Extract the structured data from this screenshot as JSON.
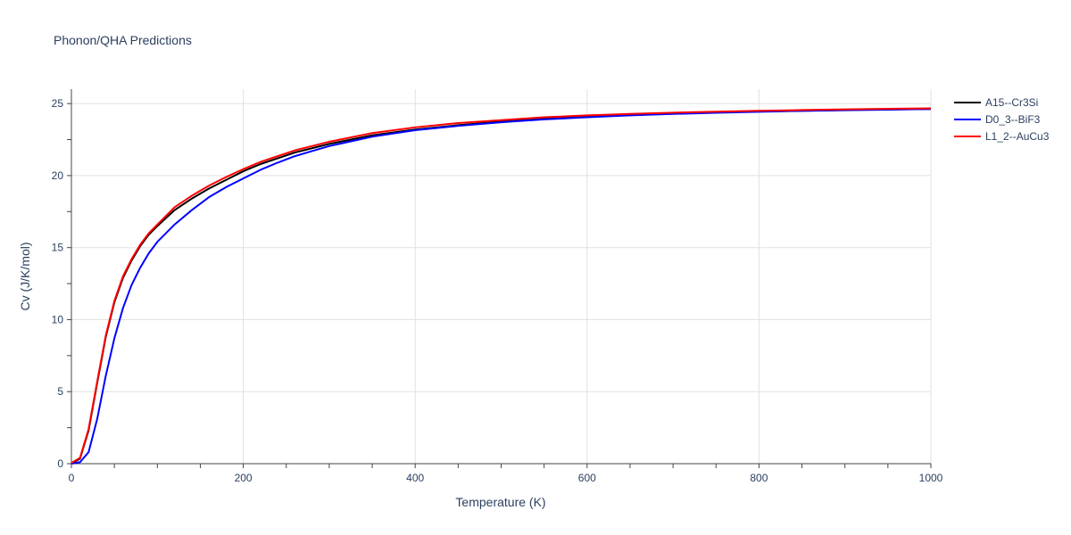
{
  "chart_data": {
    "type": "line",
    "title": "Phonon/QHA Predictions",
    "xlabel": "Temperature (K)",
    "ylabel": "Cv (J/K/mol)",
    "xlim": [
      0,
      1000
    ],
    "ylim": [
      0,
      26
    ],
    "xticks": [
      0,
      200,
      400,
      600,
      800,
      1000
    ],
    "yticks": [
      0,
      5,
      10,
      15,
      20,
      25
    ],
    "grid": true,
    "legend_position": "top-right",
    "series": [
      {
        "name": "A15--Cr3Si",
        "color": "#000000",
        "x": [
          0,
          10,
          20,
          30,
          40,
          50,
          60,
          70,
          80,
          90,
          100,
          120,
          140,
          160,
          180,
          200,
          220,
          240,
          260,
          280,
          300,
          350,
          400,
          450,
          500,
          550,
          600,
          650,
          700,
          750,
          800,
          850,
          900,
          950,
          1000
        ],
        "y": [
          0,
          0.35,
          2.3,
          5.6,
          8.8,
          11.2,
          12.9,
          14.1,
          15.1,
          15.9,
          16.5,
          17.6,
          18.4,
          19.1,
          19.7,
          20.3,
          20.8,
          21.2,
          21.6,
          21.9,
          22.2,
          22.8,
          23.2,
          23.5,
          23.75,
          23.95,
          24.1,
          24.2,
          24.3,
          24.38,
          24.45,
          24.5,
          24.55,
          24.6,
          24.62
        ]
      },
      {
        "name": "D0_3--BiF3",
        "color": "#0000ff",
        "x": [
          0,
          10,
          20,
          30,
          40,
          50,
          60,
          70,
          80,
          90,
          100,
          120,
          140,
          160,
          180,
          200,
          220,
          240,
          260,
          280,
          300,
          350,
          400,
          450,
          500,
          550,
          600,
          650,
          700,
          750,
          800,
          850,
          900,
          950,
          1000
        ],
        "y": [
          0,
          0.1,
          0.8,
          3.1,
          6.1,
          8.7,
          10.8,
          12.4,
          13.6,
          14.6,
          15.4,
          16.6,
          17.6,
          18.5,
          19.2,
          19.8,
          20.4,
          20.9,
          21.35,
          21.7,
          22.05,
          22.7,
          23.15,
          23.45,
          23.7,
          23.9,
          24.05,
          24.18,
          24.28,
          24.36,
          24.43,
          24.49,
          24.54,
          24.58,
          24.62
        ]
      },
      {
        "name": "L1_2--AuCu3",
        "color": "#ff0000",
        "x": [
          0,
          10,
          20,
          30,
          40,
          50,
          60,
          70,
          80,
          90,
          100,
          120,
          140,
          160,
          180,
          200,
          220,
          240,
          260,
          280,
          300,
          350,
          400,
          450,
          500,
          550,
          600,
          650,
          700,
          750,
          800,
          850,
          900,
          950,
          1000
        ],
        "y": [
          0.05,
          0.4,
          2.4,
          5.7,
          8.9,
          11.3,
          13.0,
          14.2,
          15.2,
          16.0,
          16.6,
          17.8,
          18.6,
          19.3,
          19.9,
          20.45,
          20.95,
          21.35,
          21.75,
          22.05,
          22.35,
          22.95,
          23.35,
          23.65,
          23.85,
          24.05,
          24.18,
          24.28,
          24.37,
          24.44,
          24.5,
          24.55,
          24.6,
          24.64,
          24.67
        ]
      }
    ]
  }
}
